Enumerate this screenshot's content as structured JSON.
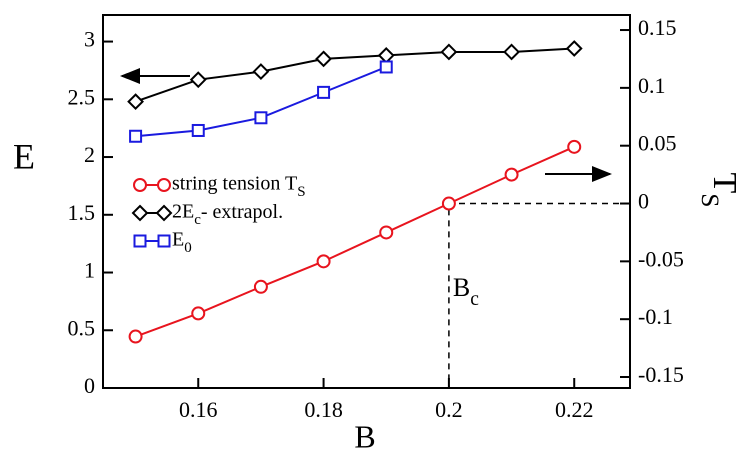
{
  "chart_data": {
    "type": "line",
    "x_label": "B",
    "y_label": "E",
    "y2_label": "T_S",
    "annotations": [
      {
        "text": "B_c"
      }
    ],
    "xlim": [
      0.1448,
      0.2289
    ],
    "xticks": [
      0.16,
      0.18,
      0.2,
      0.22
    ],
    "ylim": [
      0,
      3.23
    ],
    "yticks": [
      0,
      0.5,
      1,
      1.5,
      2,
      2.5,
      3
    ],
    "y2lim": [
      -0.1595,
      0.163
    ],
    "y2ticks": [
      -0.15,
      -0.1,
      -0.05,
      0,
      0.05,
      0.1,
      0.15
    ],
    "series": [
      {
        "name": "string tension T_S",
        "color": "#e8141e",
        "marker": "circle",
        "axis": "y2",
        "x": [
          0.15,
          0.16,
          0.17,
          0.18,
          0.19,
          0.2,
          0.21,
          0.22
        ],
        "values": [
          -0.115,
          -0.095,
          -0.072,
          -0.05,
          -0.025,
          0,
          0.025,
          0.049
        ]
      },
      {
        "name": "2E_c- extrapol.",
        "color": "#000000",
        "marker": "diamond",
        "x": [
          0.15,
          0.16,
          0.17,
          0.18,
          0.19,
          0.2,
          0.21,
          0.22
        ],
        "values": [
          2.48,
          2.67,
          2.74,
          2.85,
          2.88,
          2.91,
          2.91,
          2.94
        ]
      },
      {
        "name": "E_0",
        "color": "#1a1adf",
        "marker": "square",
        "x": [
          0.15,
          0.16,
          0.17,
          0.18,
          0.19
        ],
        "values": [
          2.18,
          2.23,
          2.34,
          2.56,
          2.78
        ]
      }
    ]
  }
}
